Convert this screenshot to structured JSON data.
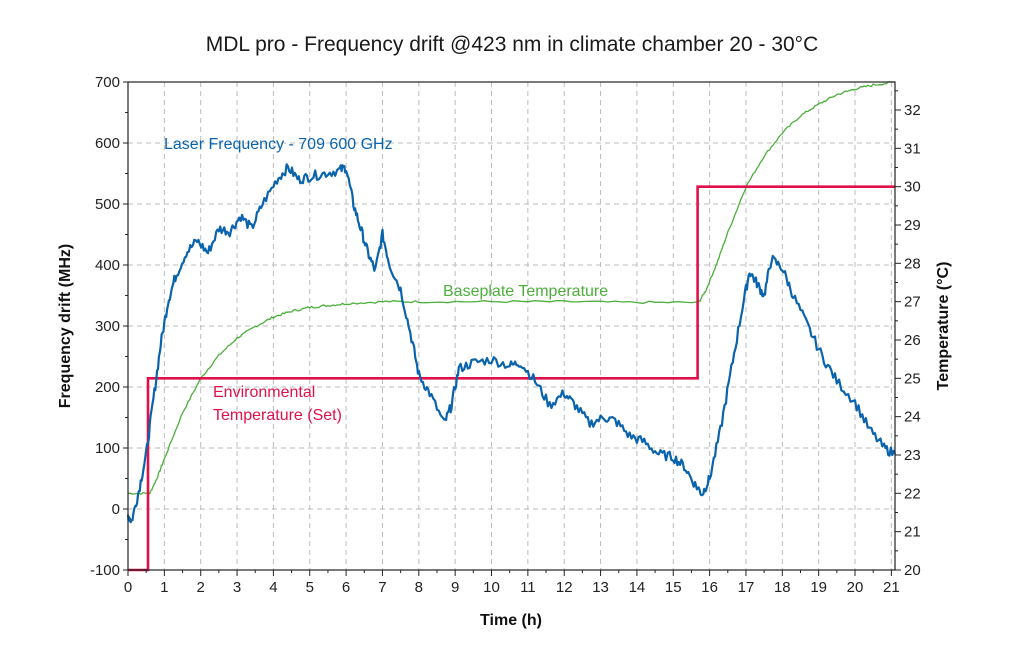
{
  "chart_data": {
    "type": "line",
    "title": "MDL pro - Frequency drift @423 nm in climate chamber 20 - 30°C",
    "xlabel": "Time (h)",
    "ylabel": "Frequency drift (MHz)",
    "y2label": "Temperature (°C)",
    "xlim": [
      0,
      21.1
    ],
    "ylim": [
      -100,
      700
    ],
    "y2lim": [
      20,
      32.73
    ],
    "grid": true,
    "x_ticks": [
      "0",
      "1",
      "2",
      "3",
      "4",
      "5",
      "6",
      "7",
      "8",
      "9",
      "10",
      "11",
      "12",
      "13",
      "14",
      "15",
      "16",
      "17",
      "18",
      "19",
      "20",
      "21"
    ],
    "y_ticks": [
      "-100",
      "0",
      "100",
      "200",
      "300",
      "400",
      "500",
      "600",
      "700"
    ],
    "y2_ticks": [
      "20",
      "21",
      "22",
      "23",
      "24",
      "25",
      "26",
      "27",
      "28",
      "29",
      "30",
      "31",
      "32"
    ],
    "colors": {
      "laser": "#0a64ad",
      "baseplate": "#4caf3c",
      "environment": "#e0104a"
    },
    "annotations": {
      "laser": "Laser Frequency - 709 600 GHz",
      "baseplate": "Baseplate Temperature",
      "environment_line1": "Environmental",
      "environment_line2": "Temperature (Set)"
    },
    "series": [
      {
        "name": "Laser Frequency - 709 600 GHz",
        "axis": "left",
        "x": [
          0,
          0.1,
          0.3,
          0.5,
          0.7,
          0.9,
          1.1,
          1.3,
          1.6,
          1.9,
          2.2,
          2.5,
          2.8,
          3.1,
          3.4,
          3.7,
          4.1,
          4.4,
          4.7,
          5.0,
          5.4,
          5.8,
          6.0,
          6.2,
          6.4,
          6.6,
          6.8,
          7.0,
          7.2,
          7.5,
          7.8,
          8.0,
          8.3,
          8.7,
          8.9,
          9.1,
          9.5,
          10.0,
          10.5,
          10.8,
          11.2,
          11.6,
          12.0,
          12.3,
          12.7,
          13.1,
          13.4,
          13.8,
          14.2,
          14.6,
          15.0,
          15.3,
          15.6,
          15.8,
          16.0,
          16.3,
          16.6,
          16.9,
          17.1,
          17.3,
          17.5,
          17.7,
          18.0,
          18.3,
          18.7,
          19.1,
          19.5,
          20.0,
          20.4,
          20.8,
          21.1
        ],
        "values": [
          -10,
          -20,
          30,
          90,
          180,
          270,
          340,
          380,
          420,
          440,
          420,
          460,
          455,
          480,
          460,
          500,
          540,
          560,
          540,
          545,
          550,
          555,
          560,
          500,
          460,
          420,
          390,
          450,
          400,
          360,
          280,
          220,
          190,
          140,
          170,
          230,
          240,
          245,
          235,
          240,
          210,
          170,
          190,
          170,
          140,
          150,
          145,
          120,
          110,
          90,
          85,
          70,
          40,
          25,
          50,
          130,
          230,
          330,
          390,
          370,
          350,
          410,
          395,
          350,
          300,
          250,
          210,
          175,
          130,
          100,
          90
        ]
      },
      {
        "name": "Baseplate Temperature",
        "axis": "right",
        "x": [
          0,
          0.6,
          0.8,
          1.0,
          1.5,
          2.0,
          2.5,
          3.0,
          3.5,
          4.0,
          4.5,
          5.0,
          5.5,
          6.0,
          7.0,
          8.0,
          10.0,
          12.0,
          14.0,
          15.7,
          15.9,
          16.2,
          16.5,
          17.0,
          17.5,
          18.0,
          18.5,
          19.0,
          19.5,
          20.0,
          20.5,
          21.1
        ],
        "values": [
          22.0,
          22.0,
          22.4,
          22.9,
          24.1,
          25.0,
          25.6,
          26.05,
          26.35,
          26.6,
          26.75,
          26.85,
          26.9,
          26.95,
          27.0,
          27.0,
          27.0,
          27.0,
          26.98,
          26.98,
          27.3,
          28.0,
          28.8,
          30.0,
          30.8,
          31.4,
          31.85,
          32.15,
          32.4,
          32.55,
          32.65,
          32.73
        ]
      },
      {
        "name": "Environmental Temperature (Set)",
        "axis": "right",
        "step": true,
        "x": [
          0,
          0.55,
          0.55,
          15.67,
          15.67,
          21.1
        ],
        "values": [
          20,
          20,
          25,
          25,
          30,
          30
        ]
      }
    ]
  }
}
